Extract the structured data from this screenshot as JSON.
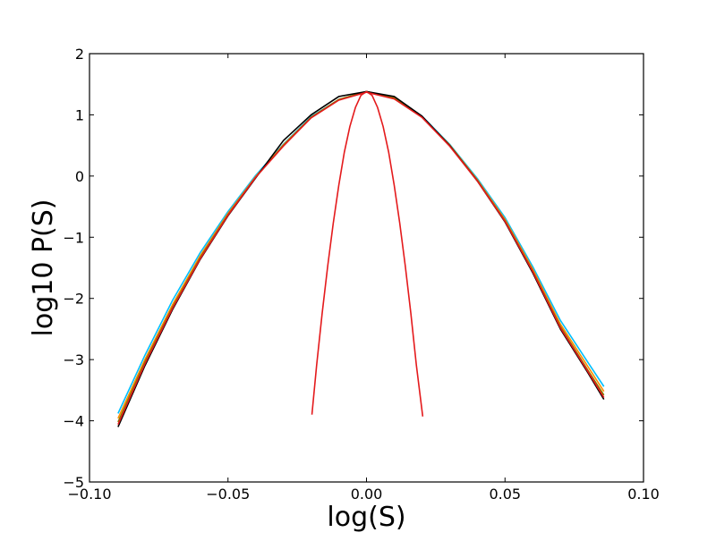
{
  "chart_data": {
    "type": "line",
    "title": "",
    "xlabel": "log(S)",
    "ylabel": "log10 P(S)",
    "xlim": [
      -0.1,
      0.1
    ],
    "ylim": [
      -5,
      2
    ],
    "xticks": [
      -0.1,
      -0.05,
      0.0,
      0.05,
      0.1
    ],
    "xtick_labels": [
      "−0.10",
      "−0.05",
      "0.00",
      "0.05",
      "0.10"
    ],
    "yticks": [
      -5,
      -4,
      -3,
      -2,
      -1,
      0,
      1,
      2
    ],
    "ytick_labels": [
      "−5",
      "−4",
      "−3",
      "−2",
      "−1",
      "0",
      "1",
      "2"
    ],
    "grid": false,
    "series": [
      {
        "color": "#00bfff",
        "x": [
          -0.0897,
          -0.08,
          -0.07,
          -0.06,
          -0.05,
          -0.04,
          -0.03,
          -0.02,
          -0.01,
          0.0,
          0.01,
          0.02,
          0.03,
          0.04,
          0.05,
          0.06,
          0.07,
          0.08,
          0.0857
        ],
        "y": [
          -3.88,
          -2.93,
          -2.03,
          -1.25,
          -0.58,
          0.01,
          0.52,
          0.97,
          1.25,
          1.38,
          1.28,
          0.98,
          0.52,
          -0.04,
          -0.68,
          -1.48,
          -2.36,
          -3.05,
          -3.44
        ]
      },
      {
        "color": "#ff8c00",
        "x": [
          -0.0897,
          -0.08,
          -0.07,
          -0.06,
          -0.05,
          -0.04,
          -0.03,
          -0.02,
          -0.01,
          0.0,
          0.01,
          0.02,
          0.03,
          0.04,
          0.05,
          0.06,
          0.07,
          0.08,
          0.0857
        ],
        "y": [
          -3.96,
          -3.0,
          -2.1,
          -1.3,
          -0.61,
          -0.01,
          0.51,
          0.96,
          1.25,
          1.38,
          1.28,
          0.97,
          0.51,
          -0.06,
          -0.71,
          -1.52,
          -2.42,
          -3.12,
          -3.52
        ]
      },
      {
        "color": "#808000",
        "x": [
          -0.0897,
          -0.08,
          -0.07,
          -0.06,
          -0.05,
          -0.04,
          -0.03,
          -0.02,
          -0.01,
          0.0,
          0.01,
          0.02,
          0.03,
          0.04,
          0.05,
          0.06,
          0.07,
          0.08,
          0.0857
        ],
        "y": [
          -4.02,
          -3.04,
          -2.14,
          -1.33,
          -0.63,
          -0.02,
          0.5,
          0.96,
          1.25,
          1.38,
          1.27,
          0.97,
          0.5,
          -0.07,
          -0.73,
          -1.55,
          -2.46,
          -3.18,
          -3.58
        ]
      },
      {
        "color": "#000000",
        "x": [
          -0.0897,
          -0.08,
          -0.07,
          -0.06,
          -0.05,
          -0.04,
          -0.03,
          -0.02,
          -0.01,
          0.0,
          0.01,
          0.02,
          0.03,
          0.04,
          0.05,
          0.06,
          0.07,
          0.08,
          0.0857
        ],
        "y": [
          -4.1,
          -3.1,
          -2.18,
          -1.36,
          -0.65,
          -0.03,
          0.58,
          1.0,
          1.3,
          1.38,
          1.3,
          0.98,
          0.5,
          -0.08,
          -0.75,
          -1.58,
          -2.5,
          -3.22,
          -3.65
        ]
      },
      {
        "color": "#e41a1c",
        "x": [
          -0.0897,
          -0.08,
          -0.07,
          -0.06,
          -0.05,
          -0.04,
          -0.03,
          -0.02,
          -0.01,
          0.0,
          0.01,
          0.02,
          0.03,
          0.04,
          0.05,
          0.06,
          0.07,
          0.08,
          0.0857
        ],
        "y": [
          -4.06,
          -3.07,
          -2.16,
          -1.35,
          -0.64,
          -0.02,
          0.49,
          0.95,
          1.24,
          1.37,
          1.26,
          0.96,
          0.49,
          -0.08,
          -0.74,
          -1.56,
          -2.48,
          -3.2,
          -3.62
        ]
      },
      {
        "color": "#e41a1c",
        "x": [
          -0.0197,
          -0.018,
          -0.016,
          -0.014,
          -0.012,
          -0.01,
          -0.008,
          -0.006,
          -0.004,
          -0.002,
          0.0,
          0.002,
          0.004,
          0.006,
          0.008,
          0.01,
          0.012,
          0.014,
          0.016,
          0.018,
          0.0203
        ],
        "y": [
          -3.9,
          -3.09,
          -2.24,
          -1.47,
          -0.77,
          -0.15,
          0.39,
          0.81,
          1.12,
          1.32,
          1.38,
          1.32,
          1.12,
          0.81,
          0.39,
          -0.15,
          -0.77,
          -1.47,
          -2.24,
          -3.09,
          -3.93
        ]
      }
    ]
  }
}
